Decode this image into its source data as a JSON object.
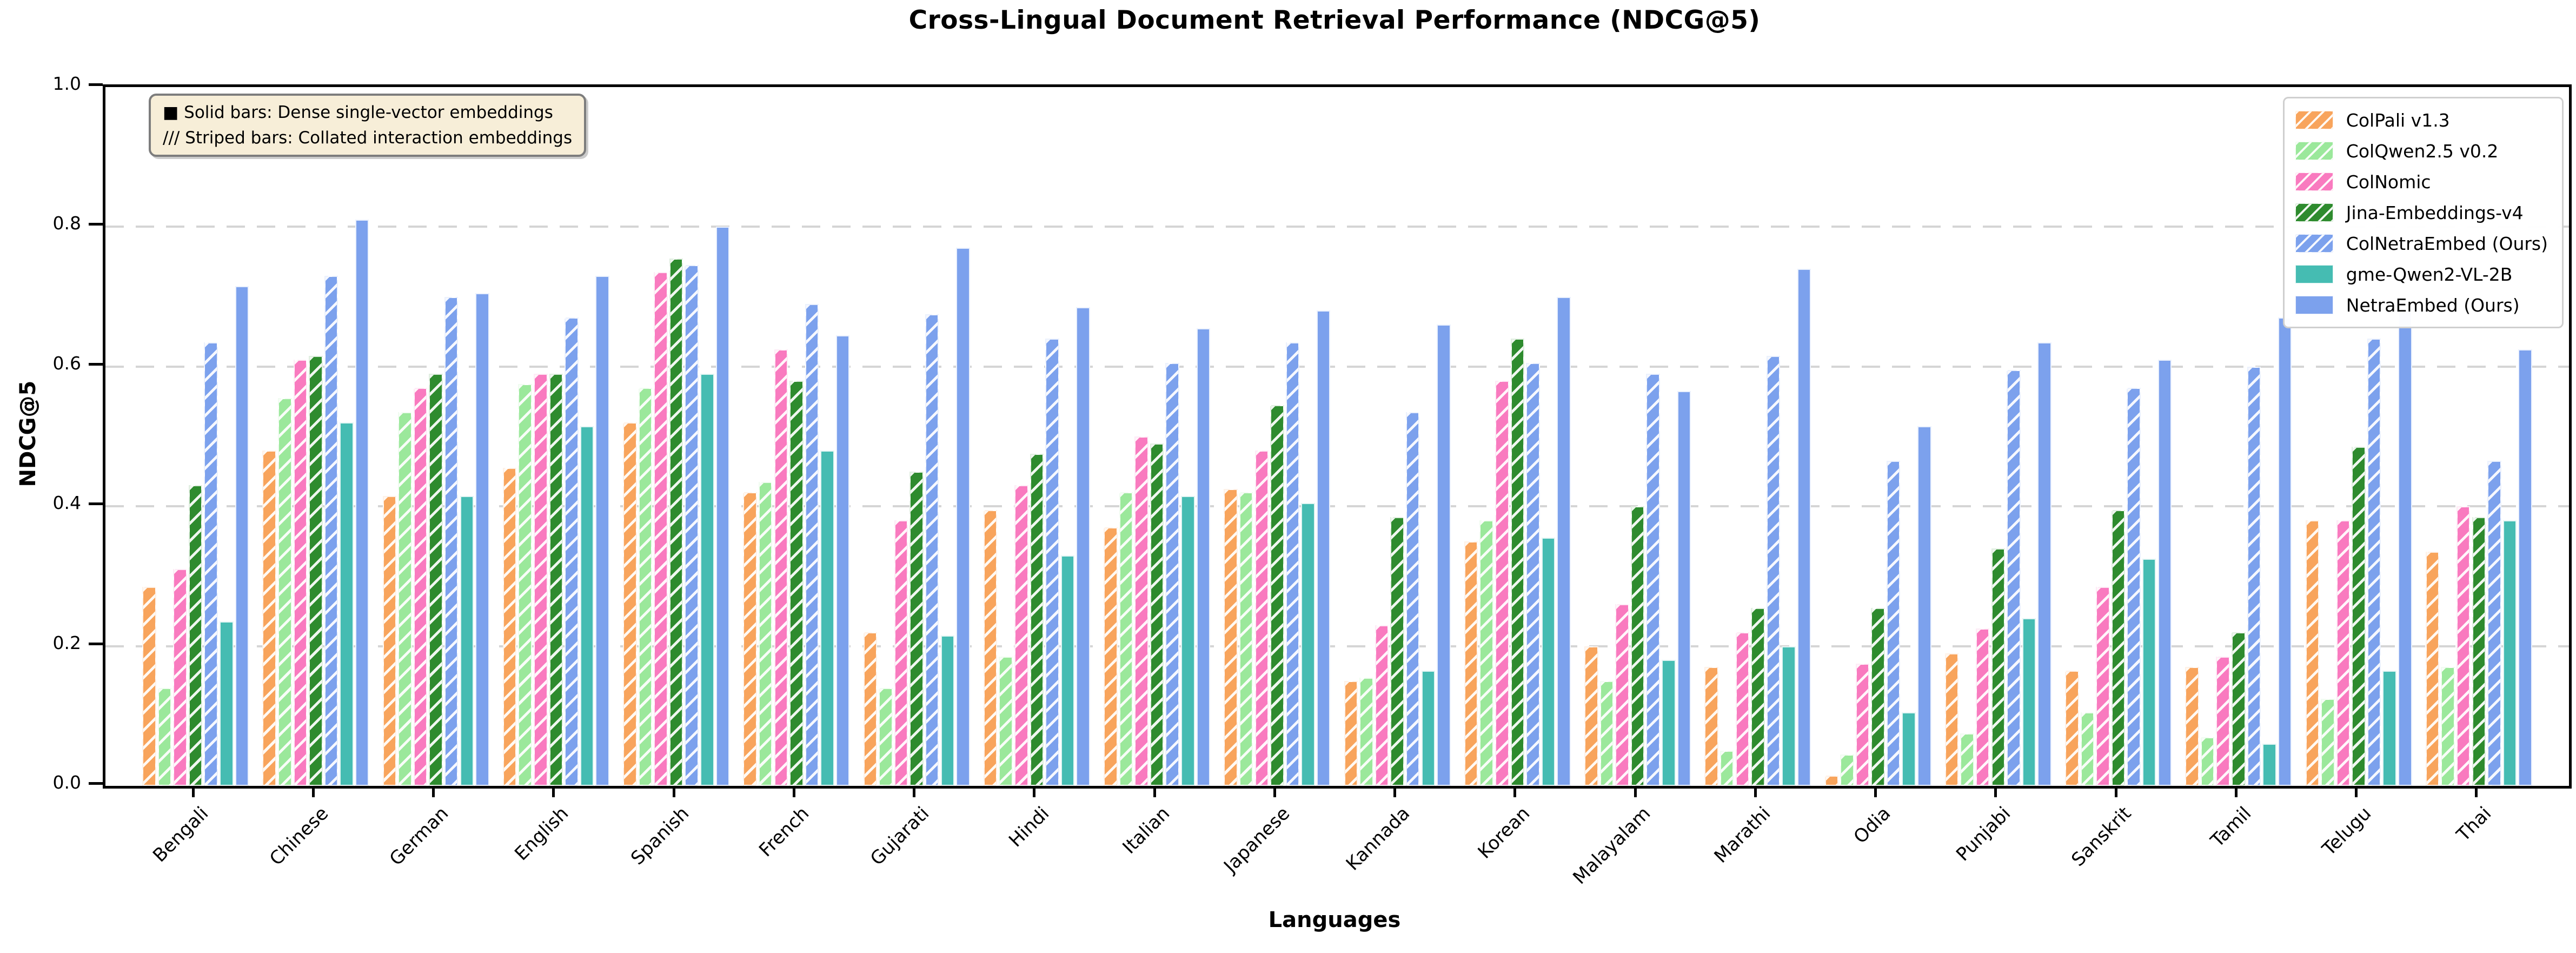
{
  "title": "Cross-Lingual Document Retrieval Performance (NDCG@5)",
  "chart_data": {
    "type": "bar",
    "title": "Cross-Lingual Document Retrieval Performance (NDCG@5)",
    "xlabel": "Languages",
    "ylabel": "NDCG@5",
    "ylim": [
      0.0,
      1.0
    ],
    "yticks": [
      0.0,
      0.2,
      0.4,
      0.6,
      0.8,
      1.0
    ],
    "grid": "horizontal dashed gridlines at 0.2 intervals",
    "legend_position": "upper right",
    "categories": [
      "Bengali",
      "Chinese",
      "German",
      "English",
      "Spanish",
      "French",
      "Gujarati",
      "Hindi",
      "Italian",
      "Japanese",
      "Kannada",
      "Korean",
      "Malayalam",
      "Marathi",
      "Odia",
      "Punjabi",
      "Sanskrit",
      "Tamil",
      "Telugu",
      "Thai"
    ],
    "series": [
      {
        "name": "ColPali v1.3",
        "color": "#F8A45C",
        "hatched": true,
        "values": [
          0.285,
          0.48,
          0.415,
          0.455,
          0.52,
          0.42,
          0.22,
          0.395,
          0.37,
          0.425,
          0.15,
          0.35,
          0.2,
          0.17,
          0.015,
          0.19,
          0.165,
          0.17,
          0.38,
          0.335
        ]
      },
      {
        "name": "ColQwen2.5 v0.2",
        "color": "#9BE89B",
        "hatched": true,
        "values": [
          0.14,
          0.555,
          0.535,
          0.575,
          0.57,
          0.435,
          0.14,
          0.185,
          0.42,
          0.42,
          0.155,
          0.38,
          0.15,
          0.05,
          0.045,
          0.075,
          0.105,
          0.07,
          0.125,
          0.17
        ]
      },
      {
        "name": "ColNomic",
        "color": "#F97ABF",
        "hatched": true,
        "values": [
          0.31,
          0.61,
          0.57,
          0.59,
          0.735,
          0.625,
          0.38,
          0.43,
          0.5,
          0.48,
          0.23,
          0.58,
          0.26,
          0.22,
          0.175,
          0.225,
          0.285,
          0.185,
          0.38,
          0.4
        ]
      },
      {
        "name": "Jina-Embeddings-v4",
        "color": "#2E8B2E",
        "hatched": true,
        "values": [
          0.43,
          0.615,
          0.59,
          0.59,
          0.755,
          0.58,
          0.45,
          0.475,
          0.49,
          0.545,
          0.385,
          0.64,
          0.4,
          0.255,
          0.255,
          0.34,
          0.395,
          0.22,
          0.485,
          0.385
        ]
      },
      {
        "name": "ColNetraEmbed (Ours)",
        "color": "#7CA1ED",
        "hatched": true,
        "values": [
          0.635,
          0.73,
          0.7,
          0.67,
          0.745,
          0.69,
          0.675,
          0.64,
          0.605,
          0.635,
          0.535,
          0.605,
          0.59,
          0.615,
          0.465,
          0.595,
          0.57,
          0.6,
          0.64,
          0.465
        ]
      },
      {
        "name": "gme-Qwen2-VL-2B",
        "color": "#45BCB2",
        "hatched": false,
        "values": [
          0.235,
          0.52,
          0.415,
          0.515,
          0.59,
          0.48,
          0.215,
          0.33,
          0.415,
          0.405,
          0.165,
          0.355,
          0.18,
          0.2,
          0.105,
          0.24,
          0.325,
          0.06,
          0.165,
          0.38
        ]
      },
      {
        "name": "NetraEmbed (Ours)",
        "color": "#7CA1ED",
        "hatched": false,
        "values": [
          0.715,
          0.81,
          0.705,
          0.73,
          0.8,
          0.645,
          0.77,
          0.685,
          0.655,
          0.68,
          0.66,
          0.7,
          0.565,
          0.74,
          0.515,
          0.635,
          0.61,
          0.67,
          0.68,
          0.625
        ]
      }
    ],
    "annotation": {
      "line1": "■ Solid bars: Dense single-vector embeddings",
      "line2": "/// Striped bars: Collated interaction embeddings",
      "background": "#f7eed8"
    }
  }
}
